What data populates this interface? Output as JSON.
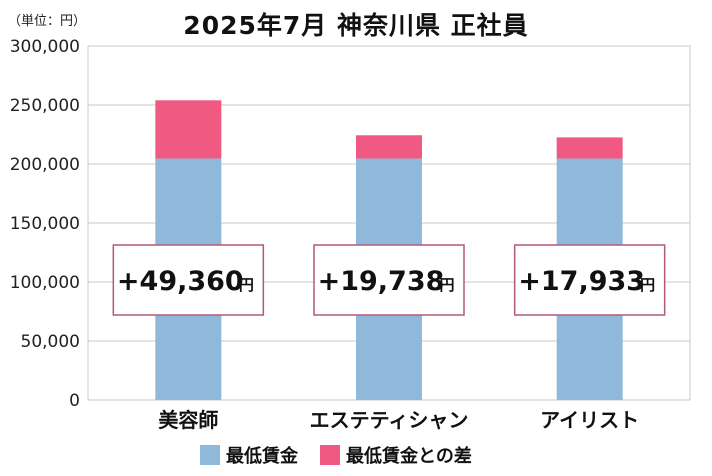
{
  "title": "2025年7月 神奈川県 正社員",
  "unit": "（単位：円）",
  "legend": [
    {
      "label": "最低賃金",
      "color": "#8fb8da"
    },
    {
      "label": "最低賃金との差",
      "color": "#f05a82"
    }
  ],
  "colors": {
    "base": "#8fb8da",
    "diff": "#f05a82",
    "grid": "#c9c9c9",
    "box_border": "#b05a7a"
  },
  "chart_data": {
    "type": "bar",
    "stacked": true,
    "title": "2025年7月 神奈川県 正社員",
    "ylabel": "（単位：円）",
    "ylim": [
      0,
      300000
    ],
    "yticks": [
      0,
      50000,
      100000,
      150000,
      200000,
      250000,
      300000
    ],
    "ytick_labels": [
      "0",
      "50,000",
      "100,000",
      "150,000",
      "200,000",
      "250,000",
      "300,000"
    ],
    "categories": [
      "美容師",
      "エステティシャン",
      "アイリスト"
    ],
    "series": [
      {
        "name": "最低賃金",
        "values": [
          204624,
          204624,
          204624
        ]
      },
      {
        "name": "最低賃金との差",
        "values": [
          49360,
          19738,
          17933
        ]
      }
    ],
    "annotations": [
      {
        "value": "+49,360",
        "unit": "円"
      },
      {
        "value": "+19,738",
        "unit": "円"
      },
      {
        "value": "+17,933",
        "unit": "円"
      }
    ],
    "grid": true
  }
}
